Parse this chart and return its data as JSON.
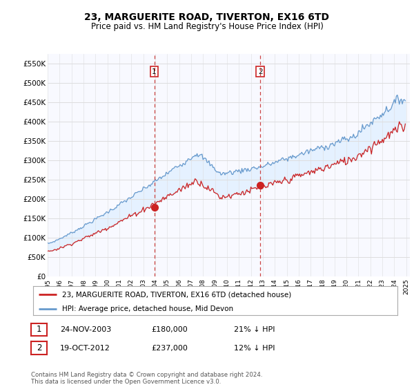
{
  "title": "23, MARGUERITE ROAD, TIVERTON, EX16 6TD",
  "subtitle": "Price paid vs. HM Land Registry's House Price Index (HPI)",
  "ylim": [
    0,
    575000
  ],
  "yticks": [
    0,
    50000,
    100000,
    150000,
    200000,
    250000,
    300000,
    350000,
    400000,
    450000,
    500000,
    550000
  ],
  "ytick_labels": [
    "£0",
    "£50K",
    "£100K",
    "£150K",
    "£200K",
    "£250K",
    "£300K",
    "£350K",
    "£400K",
    "£450K",
    "£500K",
    "£550K"
  ],
  "hpi_color": "#6699cc",
  "hpi_fill_color": "#ddeeff",
  "price_color": "#cc2222",
  "vline_color": "#cc4444",
  "grid_color": "#dddddd",
  "plot_bg_color": "#f8f9ff",
  "sale1_year": 2003.92,
  "sale1_price": 180000,
  "sale2_year": 2012.79,
  "sale2_price": 237000,
  "legend_line1": "23, MARGUERITE ROAD, TIVERTON, EX16 6TD (detached house)",
  "legend_line2": "HPI: Average price, detached house, Mid Devon",
  "table_row1": [
    "1",
    "24-NOV-2003",
    "£180,000",
    "21% ↓ HPI"
  ],
  "table_row2": [
    "2",
    "19-OCT-2012",
    "£237,000",
    "12% ↓ HPI"
  ],
  "footer": "Contains HM Land Registry data © Crown copyright and database right 2024.\nThis data is licensed under the Open Government Licence v3.0.",
  "x_start_year": 1995,
  "x_end_year": 2025
}
